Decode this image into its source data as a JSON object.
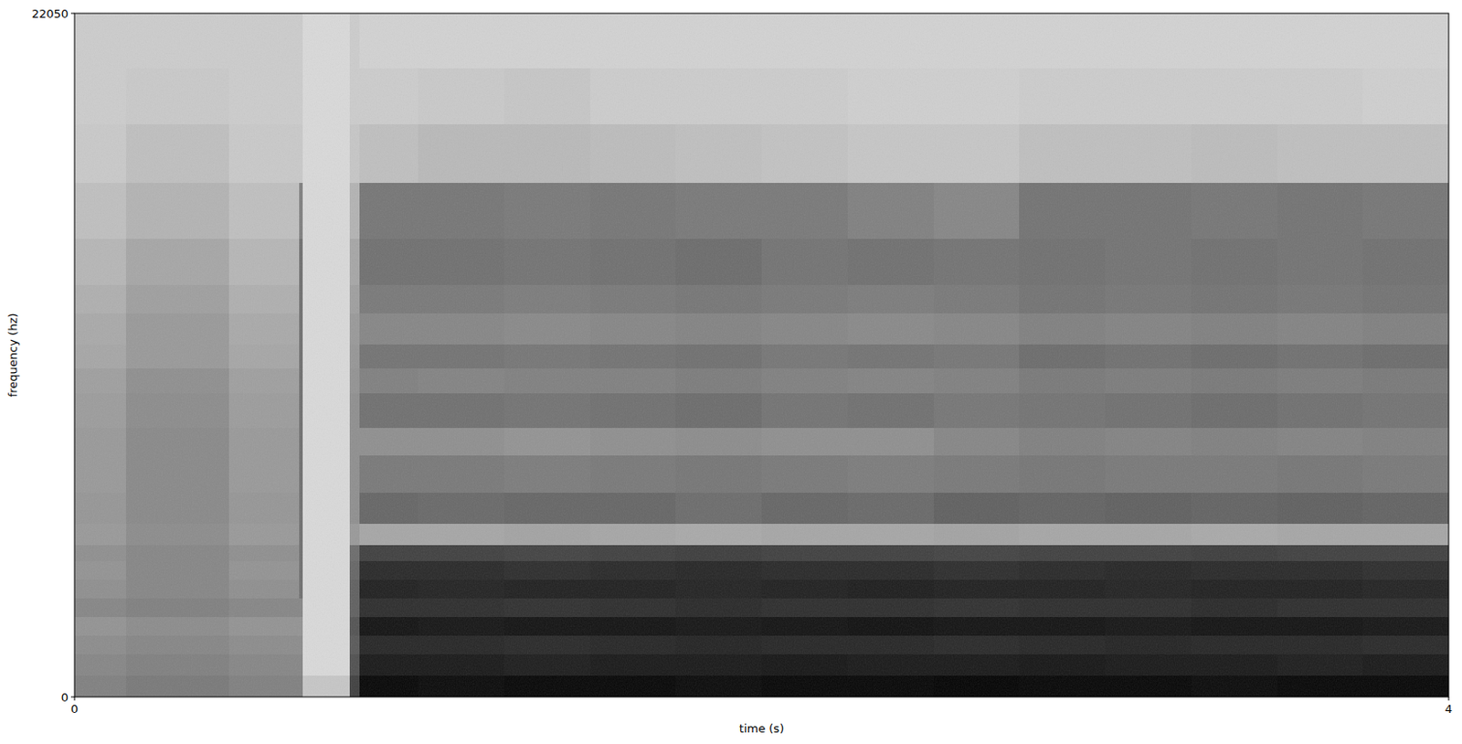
{
  "chart_data": {
    "type": "heatmap",
    "xlabel": "time (s)",
    "ylabel": "frequency (hz)",
    "xlim": [
      0,
      4
    ],
    "ylim": [
      0,
      22050
    ],
    "xticks": [
      0,
      4
    ],
    "yticks": [
      0,
      22050
    ],
    "zlim": [
      -90,
      -10
    ],
    "x_edges": [
      0,
      0.15,
      0.45,
      0.64,
      0.655,
      0.665,
      0.8,
      0.83,
      1.0,
      1.25,
      1.5,
      1.75,
      2.0,
      2.25,
      2.5,
      2.75,
      3.0,
      3.25,
      3.5,
      3.75,
      4.0
    ],
    "y_edges": [
      0,
      700,
      1400,
      2000,
      2600,
      3200,
      3800,
      4400,
      4900,
      5600,
      6600,
      7800,
      8700,
      9800,
      10600,
      11400,
      12400,
      13300,
      14800,
      16600,
      18500,
      20300,
      22050
    ],
    "values": [
      [
        -50,
        -48,
        -50,
        -50,
        -50,
        -72,
        -30,
        -12,
        -13,
        -12,
        -12,
        -13,
        -12,
        -12,
        -11,
        -12,
        -12,
        -13,
        -12,
        -12
      ],
      [
        -52,
        -50,
        -52,
        -52,
        -52,
        -78,
        -35,
        -18,
        -18,
        -19,
        -18,
        -18,
        -17,
        -18,
        -18,
        -17,
        -18,
        -18,
        -19,
        -18
      ],
      [
        -54,
        -52,
        -54,
        -54,
        -54,
        -78,
        -38,
        -22,
        -22,
        -23,
        -22,
        -21,
        -22,
        -22,
        -23,
        -22,
        -21,
        -22,
        -22,
        -23
      ],
      [
        -56,
        -54,
        -56,
        -56,
        -56,
        -78,
        -36,
        -16,
        -17,
        -16,
        -16,
        -17,
        -16,
        -15,
        -16,
        -16,
        -17,
        -16,
        -16,
        -17
      ],
      [
        -52,
        -50,
        -52,
        -52,
        -52,
        -78,
        -40,
        -24,
        -24,
        -25,
        -24,
        -23,
        -24,
        -24,
        -25,
        -24,
        -24,
        -23,
        -24,
        -24
      ],
      [
        -55,
        -52,
        -55,
        -55,
        -45,
        -78,
        -40,
        -20,
        -21,
        -20,
        -20,
        -21,
        -20,
        -19,
        -20,
        -20,
        -21,
        -20,
        -20,
        -21
      ],
      [
        -56,
        -52,
        -56,
        -56,
        -45,
        -78,
        -42,
        -23,
        -23,
        -24,
        -23,
        -22,
        -23,
        -23,
        -24,
        -23,
        -22,
        -23,
        -23,
        -24
      ],
      [
        -55,
        -52,
        -55,
        -55,
        -45,
        -78,
        -44,
        -30,
        -30,
        -31,
        -30,
        -29,
        -30,
        -30,
        -31,
        -30,
        -30,
        -29,
        -30,
        -30
      ],
      [
        -58,
        -54,
        -58,
        -58,
        -45,
        -78,
        -58,
        -62,
        -62,
        -61,
        -62,
        -63,
        -62,
        -62,
        -61,
        -62,
        -62,
        -63,
        -62,
        -62
      ],
      [
        -57,
        -53,
        -57,
        -57,
        -45,
        -78,
        -55,
        -42,
        -43,
        -42,
        -42,
        -44,
        -42,
        -43,
        -40,
        -41,
        -40,
        -41,
        -40,
        -41
      ],
      [
        -58,
        -53,
        -58,
        -58,
        -45,
        -78,
        -55,
        -48,
        -48,
        -49,
        -48,
        -47,
        -48,
        -49,
        -48,
        -47,
        -48,
        -48,
        -47,
        -48
      ],
      [
        -58,
        -53,
        -58,
        -58,
        -45,
        -78,
        -55,
        -55,
        -55,
        -56,
        -55,
        -54,
        -55,
        -55,
        -52,
        -50,
        -51,
        -50,
        -51,
        -50
      ],
      [
        -59,
        -54,
        -59,
        -59,
        -45,
        -78,
        -55,
        -45,
        -45,
        -46,
        -45,
        -44,
        -46,
        -45,
        -47,
        -46,
        -45,
        -44,
        -45,
        -46
      ],
      [
        -60,
        -55,
        -60,
        -60,
        -45,
        -78,
        -56,
        -50,
        -51,
        -50,
        -50,
        -49,
        -50,
        -51,
        -50,
        -48,
        -49,
        -48,
        -49,
        -48
      ],
      [
        -62,
        -58,
        -62,
        -62,
        -45,
        -78,
        -57,
        -46,
        -46,
        -47,
        -46,
        -45,
        -47,
        -46,
        -47,
        -44,
        -45,
        -44,
        -45,
        -44
      ],
      [
        -63,
        -58,
        -63,
        -63,
        -45,
        -78,
        -58,
        -52,
        -52,
        -53,
        -52,
        -51,
        -52,
        -53,
        -52,
        -50,
        -51,
        -50,
        -51,
        -50
      ],
      [
        -65,
        -60,
        -65,
        -65,
        -45,
        -78,
        -60,
        -48,
        -48,
        -49,
        -48,
        -47,
        -48,
        -49,
        -48,
        -46,
        -47,
        -46,
        -47,
        -46
      ],
      [
        -67,
        -62,
        -67,
        -67,
        -45,
        -78,
        -62,
        -45,
        -45,
        -46,
        -45,
        -44,
        -46,
        -45,
        -46,
        -45,
        -46,
        -45,
        -46,
        -45
      ],
      [
        -70,
        -66,
        -70,
        -70,
        -50,
        -78,
        -66,
        -47,
        -47,
        -48,
        -47,
        -48,
        -48,
        -50,
        -52,
        -46,
        -46,
        -47,
        -46,
        -47
      ],
      [
        -73,
        -70,
        -73,
        -73,
        -73,
        -78,
        -72,
        -70,
        -68,
        -68,
        -69,
        -70,
        -71,
        -72,
        -72,
        -70,
        -70,
        -69,
        -70,
        -70
      ],
      [
        -74,
        -73,
        -74,
        -74,
        -74,
        -78,
        -74,
        -74,
        -73,
        -72,
        -74,
        -74,
        -74,
        -75,
        -75,
        -74,
        -74,
        -74,
        -74,
        -75
      ],
      [
        -74,
        -74,
        -74,
        -74,
        -74,
        -78,
        -74,
        -76,
        -76,
        -76,
        -76,
        -76,
        -76,
        -76,
        -76,
        -76,
        -76,
        -76,
        -76,
        -76
      ]
    ]
  }
}
